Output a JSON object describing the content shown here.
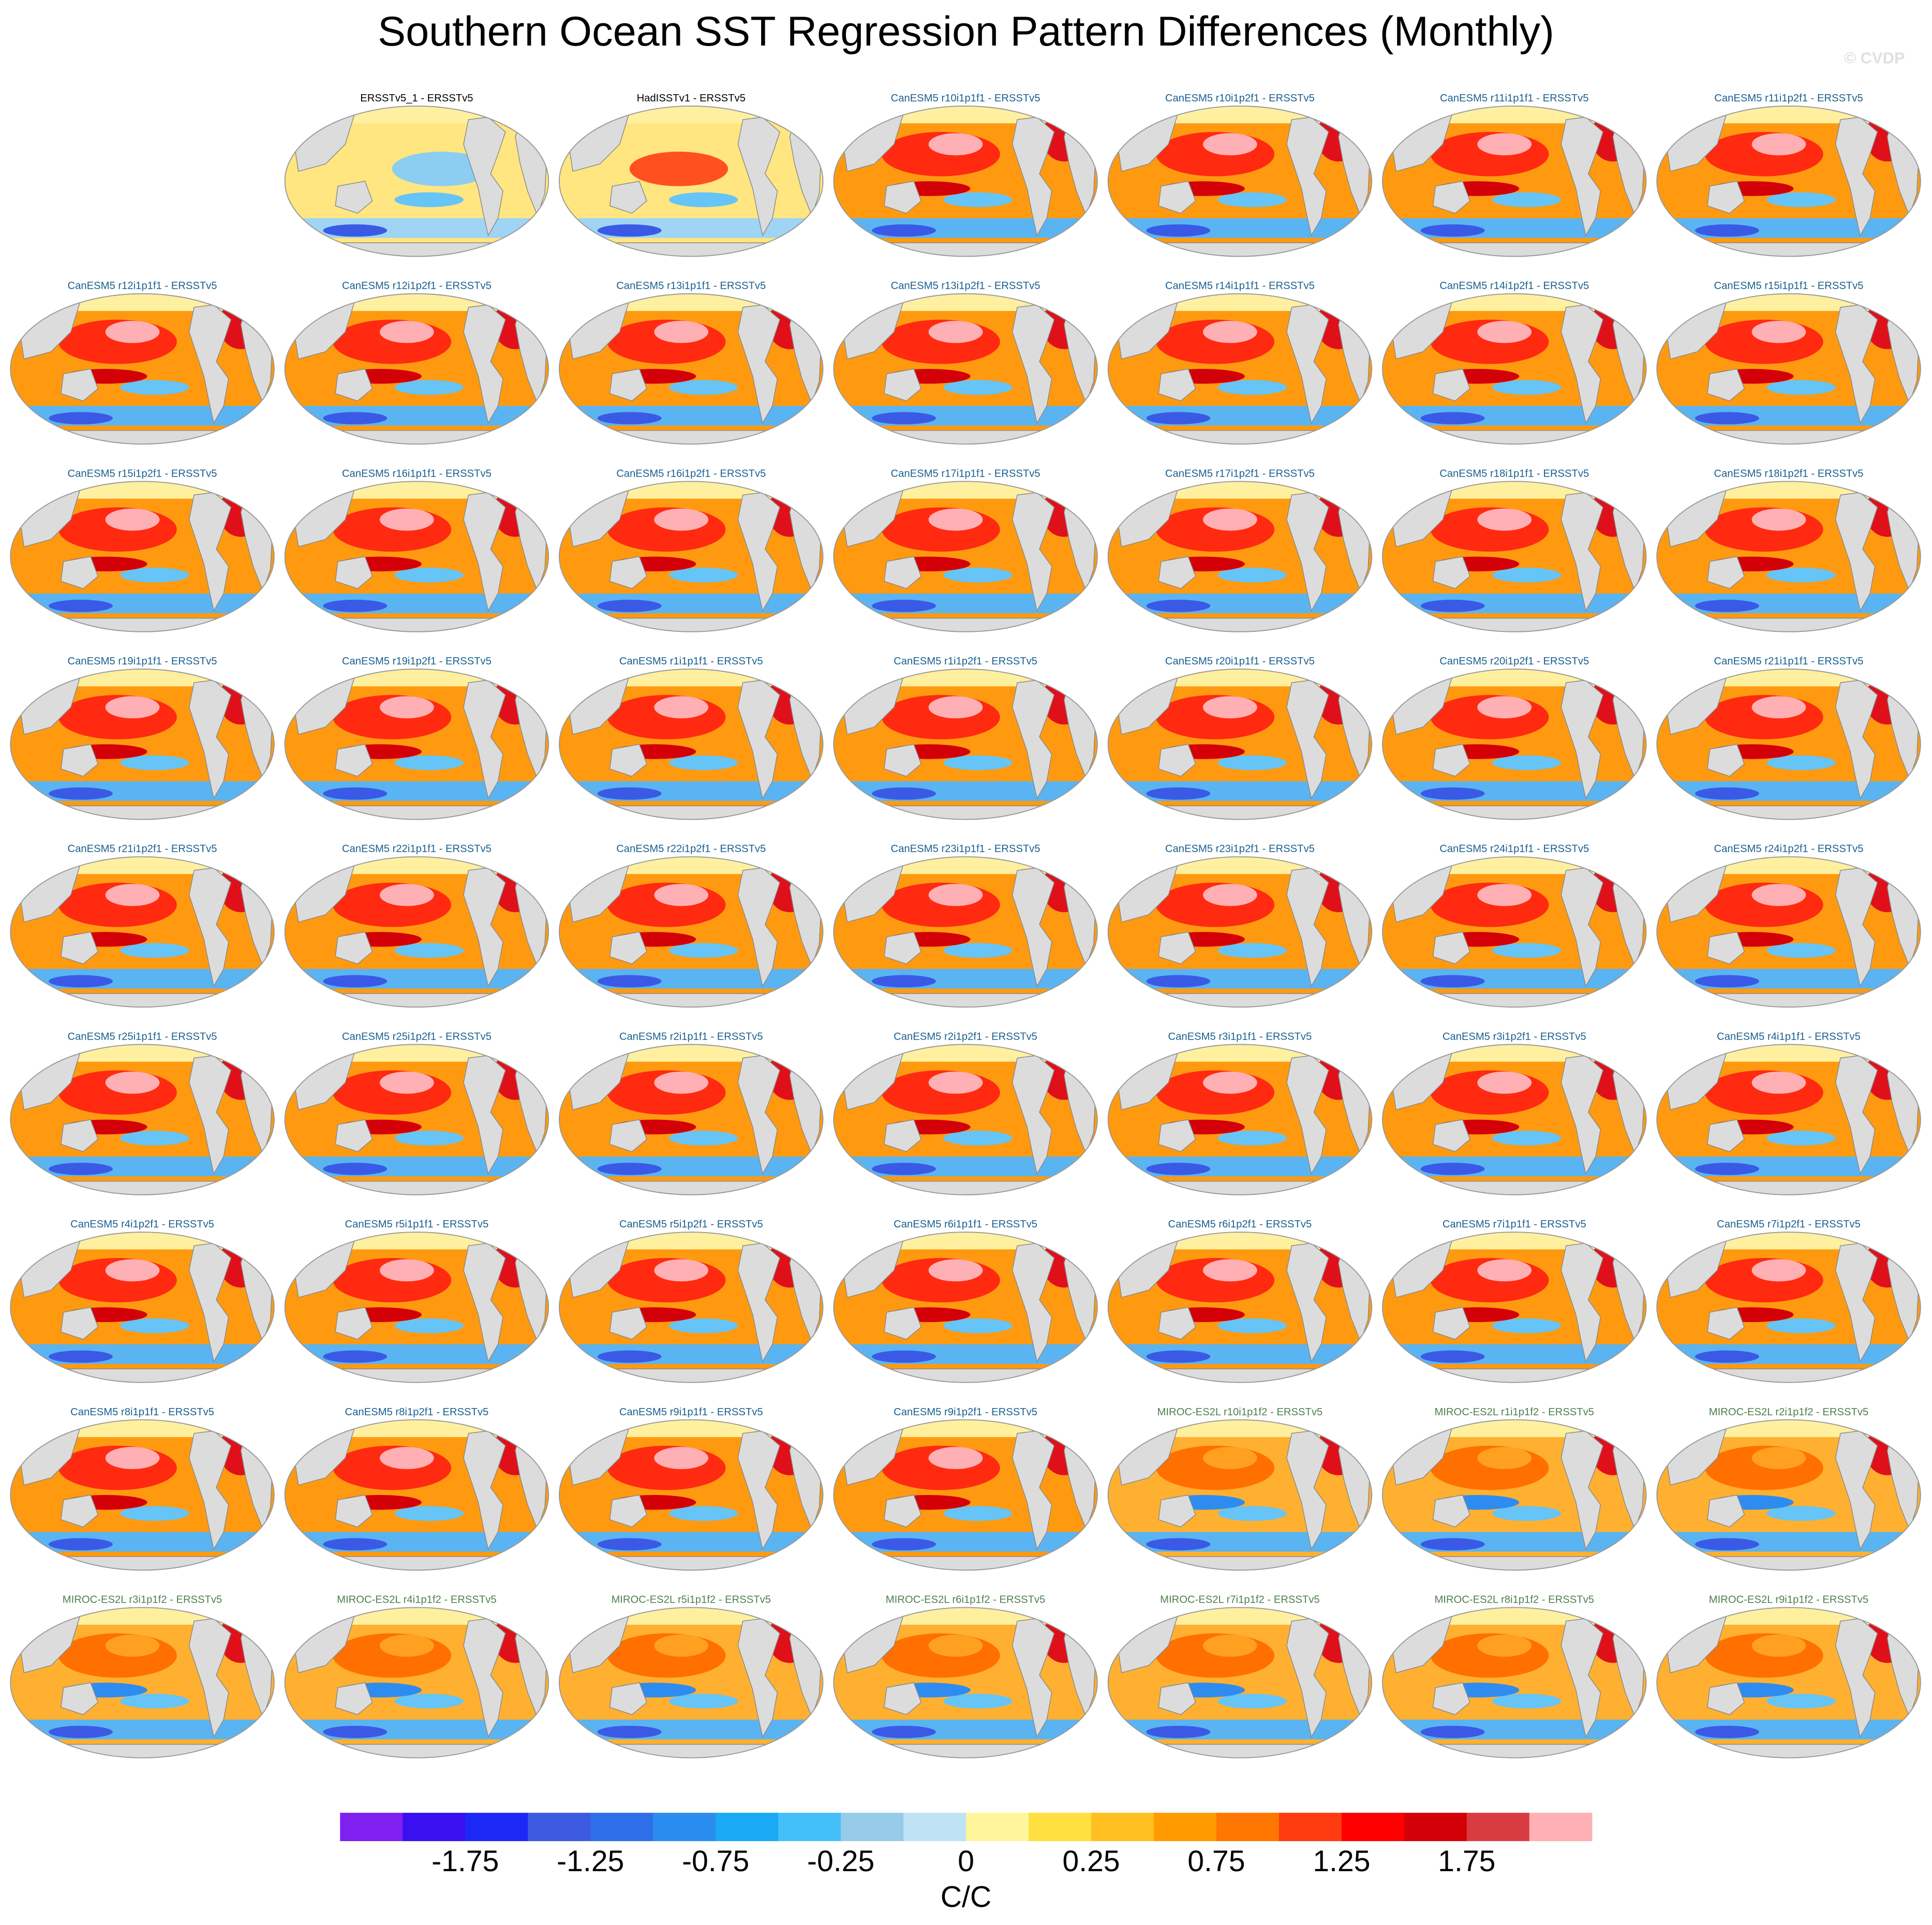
{
  "chart_data": {
    "type": "map-grid",
    "title": "Southern Ocean SST Regression Pattern Differences (Monthly)",
    "watermark": "© CVDP",
    "panels": [
      "ERSSTv5_1 - ERSSTv5",
      "HadISSTv1 - ERSSTv5",
      "CanESM5 r10i1p1f1 - ERSSTv5",
      "CanESM5 r10i1p2f1 - ERSSTv5",
      "CanESM5 r11i1p1f1 - ERSSTv5",
      "CanESM5 r11i1p2f1 - ERSSTv5",
      "CanESM5 r12i1p1f1 - ERSSTv5",
      "CanESM5 r12i1p2f1 - ERSSTv5",
      "CanESM5 r13i1p1f1 - ERSSTv5",
      "CanESM5 r13i1p2f1 - ERSSTv5",
      "CanESM5 r14i1p1f1 - ERSSTv5",
      "CanESM5 r14i1p2f1 - ERSSTv5",
      "CanESM5 r15i1p1f1 - ERSSTv5",
      "CanESM5 r15i1p2f1 - ERSSTv5",
      "CanESM5 r16i1p1f1 - ERSSTv5",
      "CanESM5 r16i1p2f1 - ERSSTv5",
      "CanESM5 r17i1p1f1 - ERSSTv5",
      "CanESM5 r17i1p2f1 - ERSSTv5",
      "CanESM5 r18i1p1f1 - ERSSTv5",
      "CanESM5 r18i1p2f1 - ERSSTv5",
      "CanESM5 r19i1p1f1 - ERSSTv5",
      "CanESM5 r19i1p2f1 - ERSSTv5",
      "CanESM5 r1i1p1f1 - ERSSTv5",
      "CanESM5 r1i1p2f1 - ERSSTv5",
      "CanESM5 r20i1p1f1 - ERSSTv5",
      "CanESM5 r20i1p2f1 - ERSSTv5",
      "CanESM5 r21i1p1f1 - ERSSTv5",
      "CanESM5 r21i1p2f1 - ERSSTv5",
      "CanESM5 r22i1p1f1 - ERSSTv5",
      "CanESM5 r22i1p2f1 - ERSSTv5",
      "CanESM5 r23i1p1f1 - ERSSTv5",
      "CanESM5 r23i1p2f1 - ERSSTv5",
      "CanESM5 r24i1p1f1 - ERSSTv5",
      "CanESM5 r24i1p2f1 - ERSSTv5",
      "CanESM5 r25i1p1f1 - ERSSTv5",
      "CanESM5 r25i1p2f1 - ERSSTv5",
      "CanESM5 r2i1p1f1 - ERSSTv5",
      "CanESM5 r2i1p2f1 - ERSSTv5",
      "CanESM5 r3i1p1f1 - ERSSTv5",
      "CanESM5 r3i1p2f1 - ERSSTv5",
      "CanESM5 r4i1p1f1 - ERSSTv5",
      "CanESM5 r4i1p2f1 - ERSSTv5",
      "CanESM5 r5i1p1f1 - ERSSTv5",
      "CanESM5 r5i1p2f1 - ERSSTv5",
      "CanESM5 r6i1p1f1 - ERSSTv5",
      "CanESM5 r6i1p2f1 - ERSSTv5",
      "CanESM5 r7i1p1f1 - ERSSTv5",
      "CanESM5 r7i1p2f1 - ERSSTv5",
      "CanESM5 r8i1p1f1 - ERSSTv5",
      "CanESM5 r8i1p2f1 - ERSSTv5",
      "CanESM5 r9i1p1f1 - ERSSTv5",
      "CanESM5 r9i1p2f1 - ERSSTv5",
      "MIROC-ES2L r10i1p1f2 - ERSSTv5",
      "MIROC-ES2L r1i1p1f2 - ERSSTv5",
      "MIROC-ES2L r2i1p1f2 - ERSSTv5",
      "MIROC-ES2L r3i1p1f2 - ERSSTv5",
      "MIROC-ES2L r4i1p1f2 - ERSSTv5",
      "MIROC-ES2L r5i1p1f2 - ERSSTv5",
      "MIROC-ES2L r6i1p1f2 - ERSSTv5",
      "MIROC-ES2L r7i1p1f2 - ERSSTv5",
      "MIROC-ES2L r8i1p1f2 - ERSSTv5",
      "MIROC-ES2L r9i1p1f2 - ERSSTv5"
    ],
    "panel_title_colors": {
      "observations": "#000000",
      "CanESM5": "#1a5f8f",
      "MIROC-ES2L": "#4f7f4f"
    },
    "colorbar": {
      "label": "C/C",
      "colors": [
        "#7f1ff0",
        "#3a10f0",
        "#1c28f5",
        "#3c5ae0",
        "#2e6ee8",
        "#2b8cf0",
        "#1aaaf5",
        "#44c0f8",
        "#96cbea",
        "#bde3f5",
        "#fff59a",
        "#ffe040",
        "#ffbf20",
        "#ff9a00",
        "#ff7600",
        "#ff3c10",
        "#ff0000",
        "#d40008",
        "#d83c40",
        "#ffb0b4"
      ],
      "ticks": [
        -1.75,
        -1.25,
        -0.75,
        -0.25,
        0,
        0.25,
        0.75,
        1.25,
        1.75
      ]
    }
  }
}
